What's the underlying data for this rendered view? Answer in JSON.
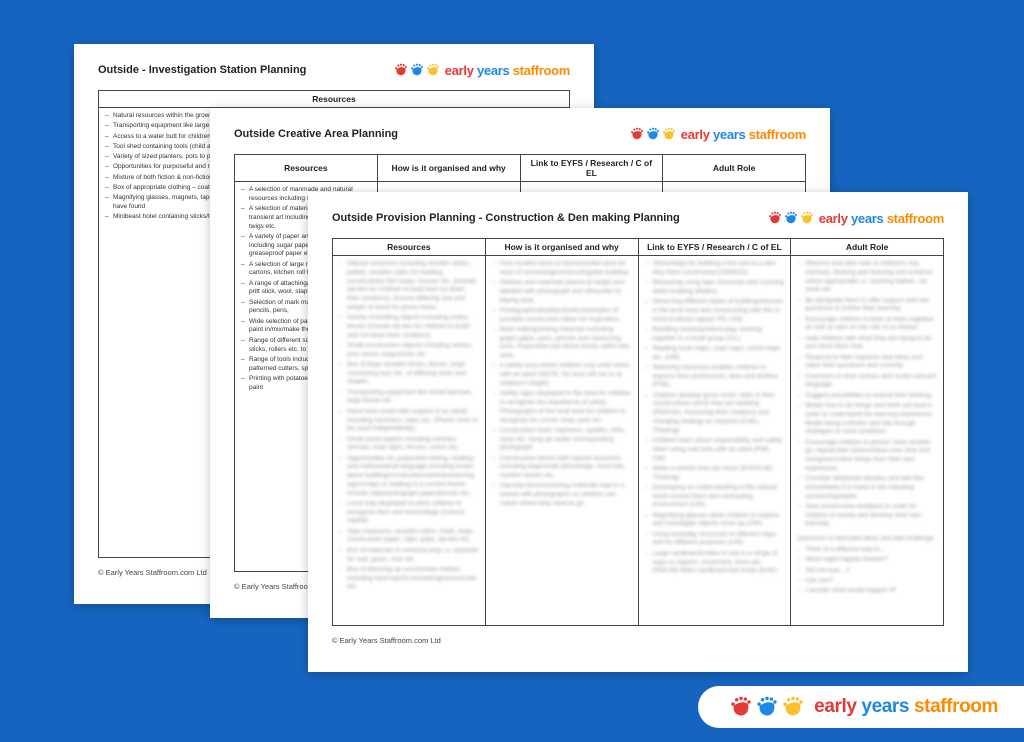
{
  "brand": {
    "word1": "early",
    "word2": "years",
    "word3": "staffroom",
    "hand_colors": [
      "#e53935",
      "#1e88e5",
      "#fbc02d"
    ]
  },
  "copyright": "© Early Years Staffroom.com Ltd",
  "docA": {
    "title": "Outside - Investigation Station Planning",
    "col1_header": "Resources",
    "col1_items": [
      "Natural resources within the growing including different seeds/bulbs etc.",
      "Transporting equipment like large boxes, watering cans, pots etc.",
      "Access to a water butt for children to independently water plants",
      "Tool shed containing tools (child appropriate) including spades, rakes, brooms, cans, gloves, water spray bottles",
      "Variety of sized planters, pots to plant flowers/veg.",
      "Opportunities for purposeful and mathematical language about growing/flowers/digging or relating to a current theme",
      "Mixture of both fiction & non-fiction books",
      "Box of appropriate clothing – coats/wellingtons/overalls",
      "Magnifying glasses, magnets, tape, rulers, timers, stopwatches, pencils, pens etc. in order for children to focus and go into detail with natural objects they have found",
      "Minibeast hotel containing sticks/twigs, natural objects"
    ]
  },
  "docB": {
    "title": "Outside Creative Area Planning",
    "headers": [
      "Resources",
      "How is it organised and why",
      "Link to EYFS / Research / C of EL",
      "Adult Role"
    ],
    "col1_items": [
      "A selection of manmade and natural resources including sticks, match sticks,",
      "A selection of material – open-ended transient art including spinning jenny, twigs etc.",
      "A variety of paper and card shapes including sugar paper, thick paper, thin greaseproof paper etc.",
      "A selection of large recycled boxes, milk cartons, kitchen roll tubes",
      "A range of attaching/joining – gloopy glue, pritt stick, wool, staples (with support)",
      "Selection of mark making – crayons, pencils, pens,",
      "Wide selection of paint – to squeeze the paint in/mix/make their own",
      "Range of different size paint brushes, sticks, rollers etc. to paint with",
      "Range of tools including scissors, patterned cutters, sponges, stencils",
      "Printing with potatoes/vehicles through paint"
    ]
  },
  "docC": {
    "title": "Outside Provision Planning - Construction & Den making Planning",
    "headers": [
      "Resources",
      "How is it organised and why",
      "Link to EYFS / Research / C of EL",
      "Adult Role"
    ],
    "blur_items_1": [
      "Natural resources including wooden sticks, pallets, wooden slabs for building constructions like boats, houses etc. (include zip-ties for children to build and cut down their creations). Ensure differing size and weight of wood for gross motor.",
      "Variety of building objects including crates, blocks (include zip-ties for children to build and cut down their creations).",
      "Small construction objects including stones, pine cones, twigs/sticks etc.",
      "Box of large wooden bricks, blocks, large connecting toys etc. of differing sizes and shapes.",
      "Transporting equipment like wheel barrows, large boxes etc.",
      "Hand tools (used with support of an adult) including hammers, saws etc. (Plastic tools to be used independently).",
      "Small world objects including vehicles, animals, road signs, fences, cones etc.",
      "Opportunities for purposeful writing, reading and mathematical language including books about building/construction/vehicles/warning signs/maps or relating to a current theme. Include clipboards/graph paper/pencils etc.",
      "Local map displayed to allow children to recognise their own town/village (cultural capital).",
      "Tape measures, wooden rulers, chalk, large construction paper, clips, grips, zip-ties etc.",
      "Box of materials to enhance play i.e. tarpaulin for roof, grass, river etc.",
      "Box of dressing-up construction clothes including hard hats/hi-vis/wellingtons/overalls etc."
    ],
    "blur_items_2": [
      "Area located close to trees/wooded area for ease of connecting/constructing/den building",
      "Shelves and materials placed at height and labelled with photograph and silhouette for tidying area",
      "Photographs/displays/books/examples of possible construction ideas for inspiration.",
      "Mark making/writing materials including graph paper, pens, pencils and measuring tools. Purposeful non-fiction books within this area.",
      "A safety area where children only enter when with an adult (NOTE: No tools left out or at children's height).",
      "Safety signs displayed in the area for children to recognise the importance of safety. Photographs of the local area for children to recognise inc corner shop, park etc.",
      "Construction tools: hammers, spades, drills, saws etc. hung up under corresponding photograph",
      "Construction bench with natural resources including large/small sticks/twigs, hard hats, number stones etc.",
      "Clips/zip-ties/connecting materials kept in a basket with photographs so children can match where they need to go."
    ],
    "blur_items_3": [
      "Sticks/twigs for building a fire next to a den they have constructed (UW/EAD)",
      "Measuring using tape measures and counting whilst building (Maths)",
      "Observing different styles of buildings/houses in the local area and constructing with this in mind (Cultural capital, PD, UW)",
      "Retelling stories/pretend play, working together in a small group (C/L)",
      "Reading local maps, road maps, world maps etc. (UW)",
      "Selecting resources enables children to express their preferences, likes and dislikes (PSE)",
      "Children develop gross motor skills in their constructions which they are building (PD/EAD). Assessing their creations and changing strategy as required (CoEL, Thinking)",
      "Children learn about responsibility and safety when using real tools with an adult (PSE, UW)",
      "Make a vehicle that can move (EAD/CoEL Thinking)",
      "Developing an understanding of the natural world around them and contrasting environment (UW)",
      "Magnifying glasses allow children to explore and investigate objects close up (UW)",
      "Using everyday resources in different ways and for different purposes (UW)",
      "Large cardboard/crates to use in a range of ways to explore, movement, force etc. (PD/UW) Make cardboard box boats (EAD)"
    ],
    "blur_items_4": [
      "Observe and take note of children's key interests, thinking and learning and enhance where appropriate i.e. washing babies, car wash etc.",
      "Be alongside them to offer support and ask questions to further their learning",
      "Encourage children to learn to learn together as well as take on the role of co-thinker",
      "Help children with what they are trying to do and show them how",
      "Respond to their requests and ideas and value their questions and curiosity",
      "Comment on their actions and model relevant language",
      "Suggest possibilities to extend their thinking",
      "Model how to do things and think out loud in order to understand the learning experience. Model being a thinker and talk through strategies to solve problems",
      "Encourage children to persist, have another go, repeat their actions/ideas over time and recognise/notice things from their own experience",
      "Consider additional stimulus and add this immediately if to hand or the following session/day/week",
      "Give constructive feedback in order for children to review and develop their own learning"
    ],
    "questions_head": "Questions to stimulate ideas and add challenge",
    "questions": [
      "Think of a different way to…",
      "What might happen if/when?",
      "Tell me how…?",
      "Can you?",
      "I wonder what would happen if?"
    ]
  }
}
